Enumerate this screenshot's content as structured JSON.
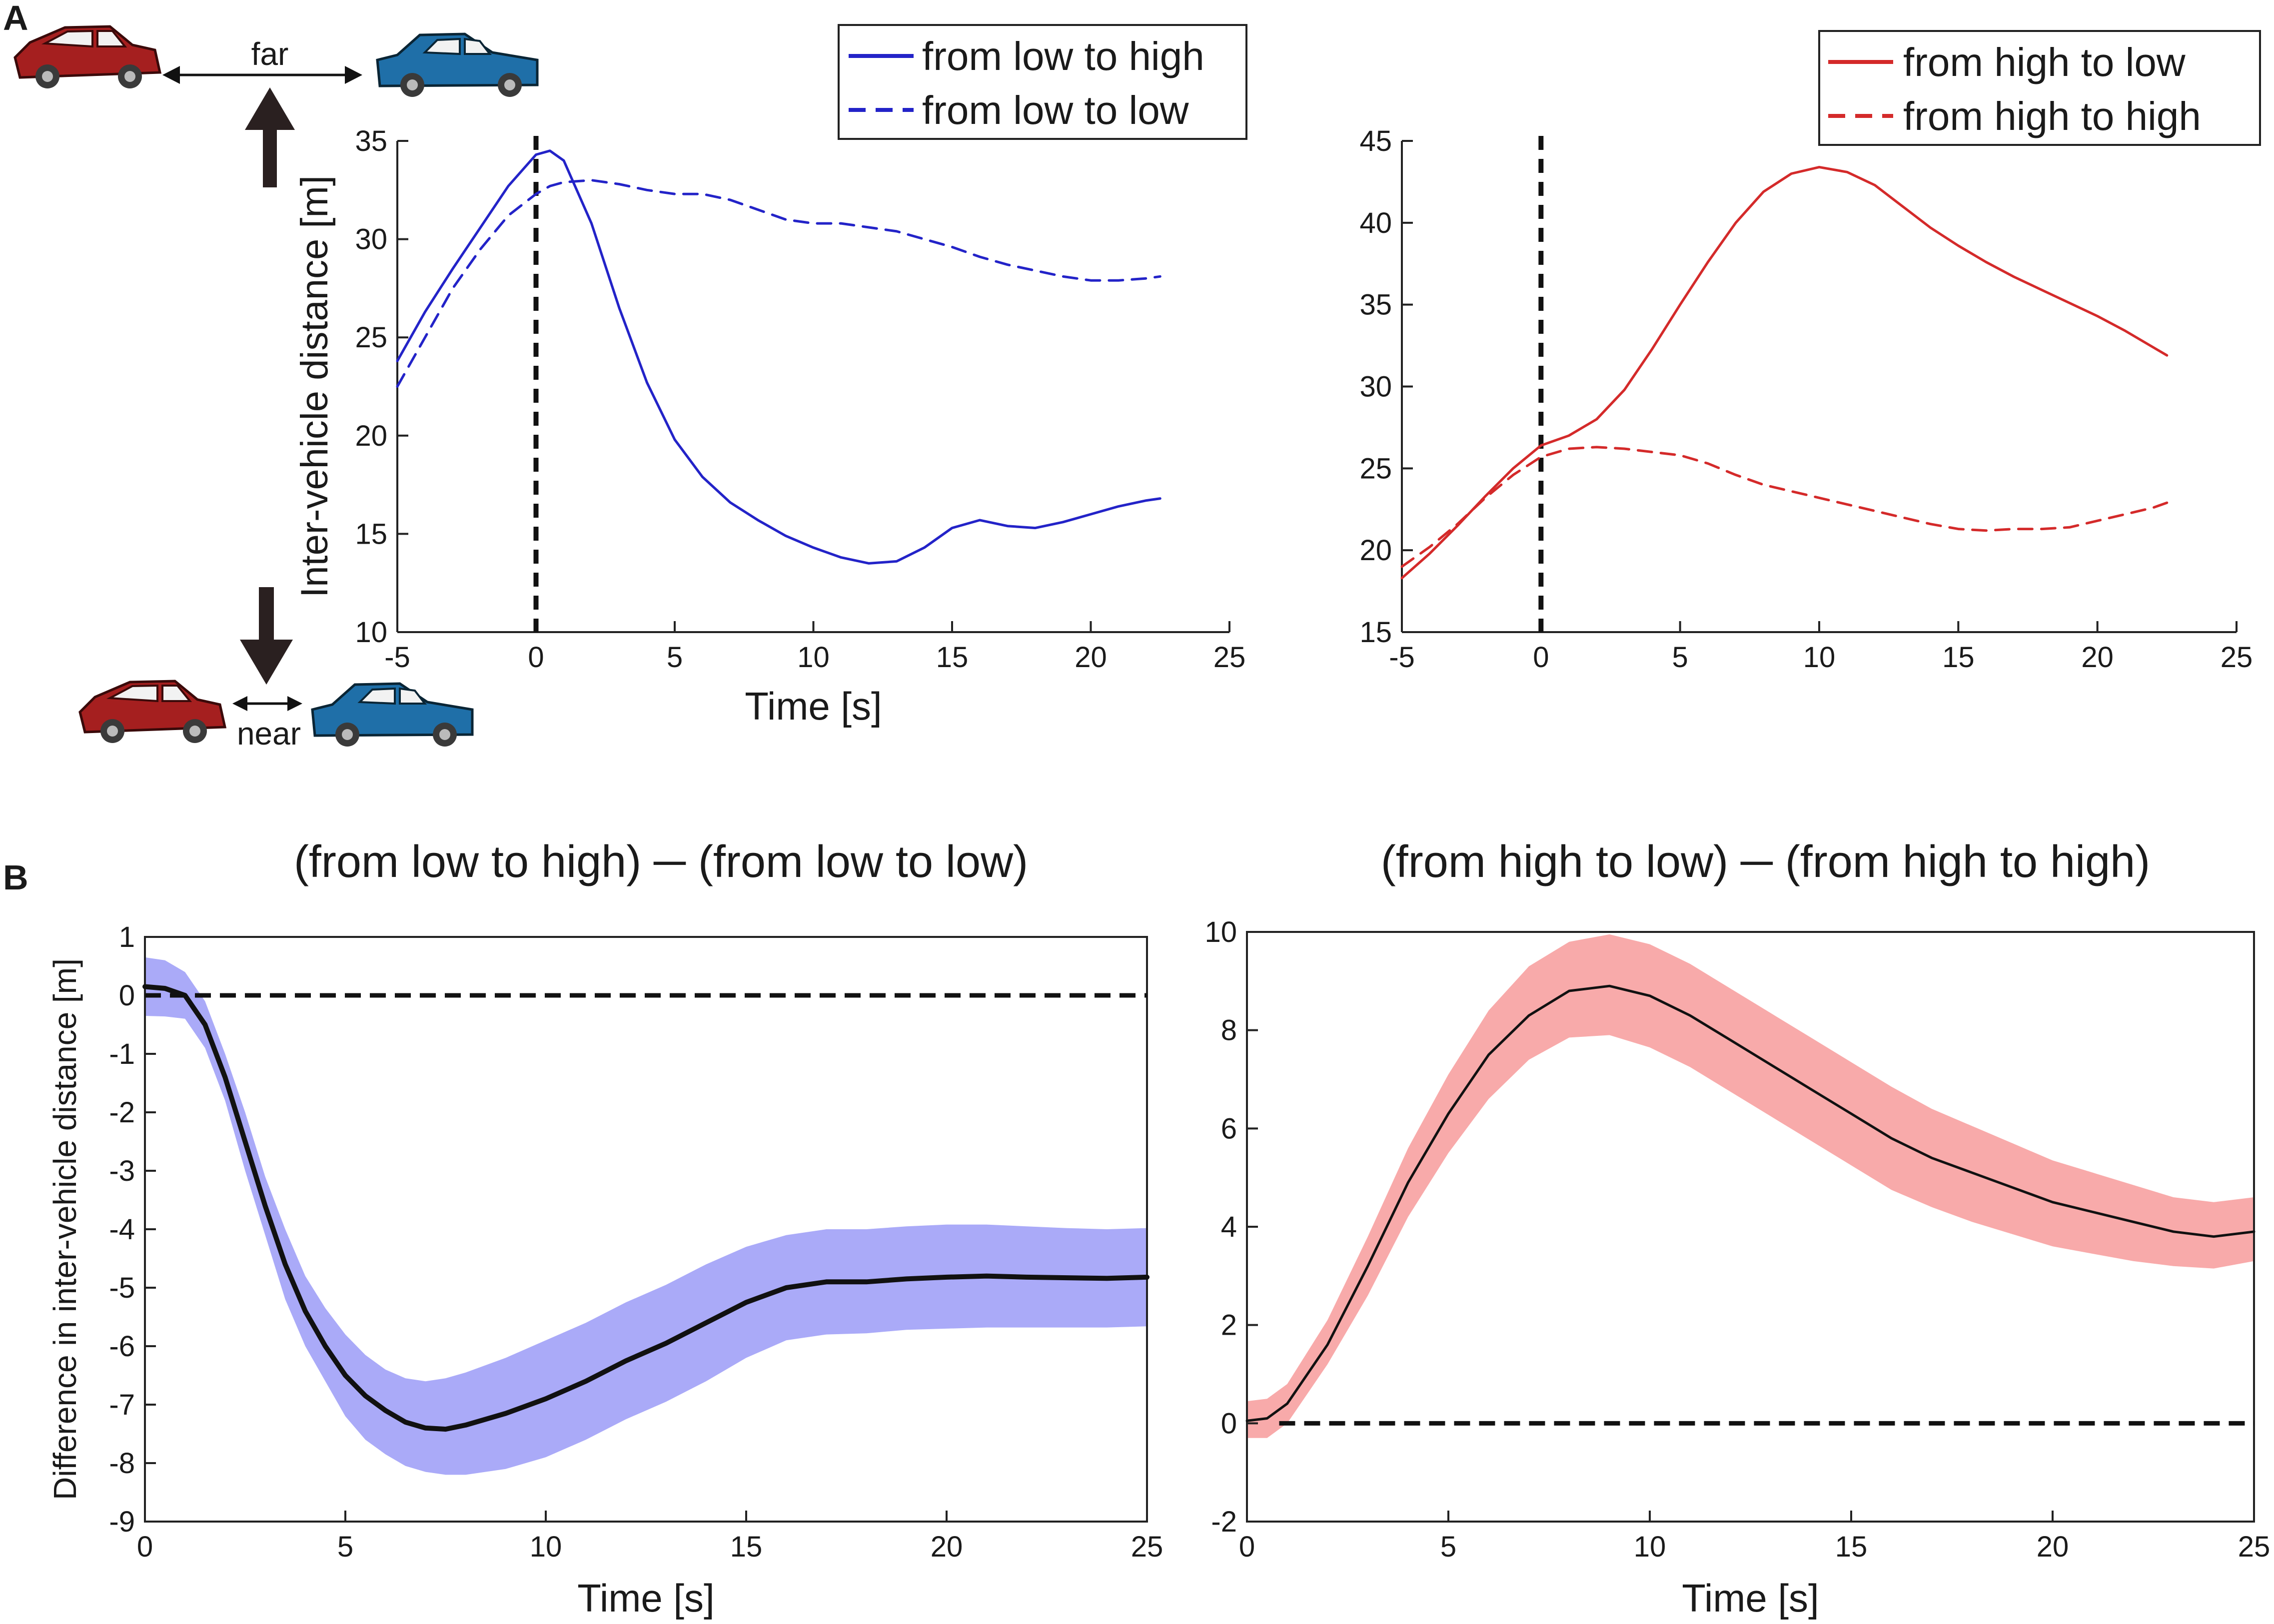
{
  "figure": {
    "panel_a_label": "A",
    "panel_b_label": "B",
    "car_labels": {
      "far": "far",
      "near": "near"
    },
    "colors": {
      "blue": "#2323c8",
      "red": "#d42a2a",
      "blue_band": "#aaaaf8",
      "red_band": "#f8aaaa",
      "black": "#111111"
    }
  },
  "chart_data": [
    {
      "id": "a_left",
      "type": "line",
      "title": "",
      "xlabel": "Time [s]",
      "ylabel": "Inter-vehicle distance [m]",
      "xlim": [
        -5,
        25
      ],
      "ylim": [
        10,
        35
      ],
      "xticks": [
        -5,
        0,
        5,
        10,
        15,
        20,
        25
      ],
      "yticks": [
        10,
        15,
        20,
        25,
        30,
        35
      ],
      "x": [
        -5,
        -4,
        -3,
        -2,
        -1,
        0,
        0.5,
        1,
        2,
        3,
        4,
        5,
        6,
        7,
        8,
        9,
        10,
        11,
        12,
        13,
        14,
        15,
        16,
        17,
        18,
        19,
        20,
        21,
        22,
        22.5
      ],
      "series": [
        {
          "name": "from low to high",
          "style": "solid",
          "color": "#2323c8",
          "values": [
            23.8,
            26.3,
            28.5,
            30.6,
            32.7,
            34.3,
            34.5,
            34.0,
            30.8,
            26.5,
            22.7,
            19.8,
            17.9,
            16.6,
            15.7,
            14.9,
            14.3,
            13.8,
            13.5,
            13.6,
            14.3,
            15.3,
            15.7,
            15.4,
            15.3,
            15.6,
            16.0,
            16.4,
            16.7,
            16.8
          ]
        },
        {
          "name": "from low to low",
          "style": "dashed",
          "color": "#2323c8",
          "values": [
            22.5,
            25.0,
            27.5,
            29.5,
            31.2,
            32.3,
            32.7,
            32.9,
            33.0,
            32.8,
            32.5,
            32.3,
            32.3,
            32.0,
            31.5,
            31.0,
            30.8,
            30.8,
            30.6,
            30.4,
            30.0,
            29.6,
            29.1,
            28.7,
            28.4,
            28.1,
            27.9,
            27.9,
            28.0,
            28.1
          ]
        }
      ],
      "vline_x": 0,
      "legend": "top-right"
    },
    {
      "id": "a_right",
      "type": "line",
      "title": "",
      "xlabel": "",
      "ylabel": "",
      "xlim": [
        -5,
        25
      ],
      "ylim": [
        15,
        45
      ],
      "xticks": [
        -5,
        0,
        5,
        10,
        15,
        20,
        25
      ],
      "yticks": [
        15,
        20,
        25,
        30,
        35,
        40,
        45
      ],
      "x": [
        -5,
        -4,
        -3,
        -2,
        -1,
        0,
        1,
        2,
        3,
        4,
        5,
        6,
        7,
        8,
        9,
        10,
        11,
        12,
        13,
        14,
        15,
        16,
        17,
        18,
        19,
        20,
        21,
        22,
        22.5
      ],
      "series": [
        {
          "name": "from high to low",
          "style": "solid",
          "color": "#d42a2a",
          "values": [
            18.3,
            19.8,
            21.5,
            23.3,
            25.0,
            26.4,
            27.0,
            28.0,
            29.8,
            32.3,
            35.0,
            37.6,
            40.0,
            41.9,
            43.0,
            43.4,
            43.1,
            42.3,
            41.0,
            39.7,
            38.6,
            37.6,
            36.7,
            35.9,
            35.1,
            34.3,
            33.4,
            32.4,
            31.9
          ]
        },
        {
          "name": "from high to high",
          "style": "dashed",
          "color": "#d42a2a",
          "values": [
            19.0,
            20.2,
            21.6,
            23.2,
            24.6,
            25.7,
            26.2,
            26.3,
            26.2,
            26.0,
            25.8,
            25.3,
            24.6,
            24.0,
            23.6,
            23.2,
            22.8,
            22.4,
            22.0,
            21.6,
            21.3,
            21.2,
            21.3,
            21.3,
            21.4,
            21.8,
            22.2,
            22.6,
            22.9
          ]
        }
      ],
      "vline_x": 0,
      "legend": "top-right"
    },
    {
      "id": "b_left",
      "type": "area",
      "title": "(from low to high) ─ (from low to low)",
      "xlabel": "Time [s]",
      "ylabel": "Difference in inter-vehicle distance [m]",
      "xlim": [
        0,
        25
      ],
      "ylim": [
        -9,
        1
      ],
      "xticks": [
        0,
        5,
        10,
        15,
        20,
        25
      ],
      "yticks": [
        -9,
        -8,
        -7,
        -6,
        -5,
        -4,
        -3,
        -2,
        -1,
        0,
        1
      ],
      "x": [
        0,
        0.5,
        1,
        1.5,
        2,
        2.5,
        3,
        3.5,
        4,
        4.5,
        5,
        5.5,
        6,
        6.5,
        7,
        7.5,
        8,
        9,
        10,
        11,
        12,
        13,
        14,
        15,
        16,
        17,
        18,
        19,
        20,
        21,
        22,
        23,
        24,
        25
      ],
      "series": [
        {
          "name": "mean",
          "color": "#111111",
          "values": [
            0.15,
            0.12,
            0.0,
            -0.5,
            -1.4,
            -2.5,
            -3.6,
            -4.6,
            -5.4,
            -6.0,
            -6.5,
            -6.85,
            -7.1,
            -7.3,
            -7.4,
            -7.42,
            -7.35,
            -7.15,
            -6.9,
            -6.6,
            -6.25,
            -5.95,
            -5.6,
            -5.25,
            -5.0,
            -4.9,
            -4.9,
            -4.85,
            -4.82,
            -4.8,
            -4.82,
            -4.83,
            -4.84,
            -4.82
          ]
        },
        {
          "name": "upper",
          "color": "#aaaaf8",
          "values": [
            0.65,
            0.6,
            0.4,
            -0.1,
            -1.0,
            -2.0,
            -3.1,
            -4.0,
            -4.8,
            -5.35,
            -5.8,
            -6.15,
            -6.4,
            -6.55,
            -6.6,
            -6.55,
            -6.45,
            -6.2,
            -5.9,
            -5.6,
            -5.25,
            -4.95,
            -4.6,
            -4.3,
            -4.1,
            -4.0,
            -4.0,
            -3.95,
            -3.92,
            -3.92,
            -3.95,
            -3.98,
            -4.0,
            -3.98
          ]
        },
        {
          "name": "lower",
          "color": "#aaaaf8",
          "values": [
            -0.35,
            -0.36,
            -0.4,
            -0.9,
            -1.8,
            -3.0,
            -4.1,
            -5.2,
            -6.0,
            -6.6,
            -7.2,
            -7.6,
            -7.85,
            -8.05,
            -8.15,
            -8.2,
            -8.2,
            -8.1,
            -7.9,
            -7.6,
            -7.25,
            -6.95,
            -6.6,
            -6.2,
            -5.9,
            -5.8,
            -5.78,
            -5.72,
            -5.7,
            -5.68,
            -5.68,
            -5.68,
            -5.68,
            -5.66
          ]
        }
      ],
      "hline_y": 0,
      "hline_x_range": [
        0,
        25
      ]
    },
    {
      "id": "b_right",
      "type": "area",
      "title": "(from high to low) ─ (from high to high)",
      "xlabel": "Time [s]",
      "ylabel": "",
      "xlim": [
        0,
        25
      ],
      "ylim": [
        -2,
        10
      ],
      "xticks": [
        0,
        5,
        10,
        15,
        20,
        25
      ],
      "yticks": [
        -2,
        0,
        2,
        4,
        6,
        8,
        10
      ],
      "x": [
        0,
        0.5,
        1,
        2,
        3,
        4,
        5,
        6,
        7,
        8,
        9,
        10,
        11,
        12,
        13,
        14,
        15,
        16,
        17,
        18,
        19,
        20,
        21,
        22,
        23,
        24,
        25
      ],
      "series": [
        {
          "name": "mean",
          "color": "#111111",
          "values": [
            0.05,
            0.1,
            0.4,
            1.6,
            3.2,
            4.9,
            6.3,
            7.5,
            8.3,
            8.8,
            8.9,
            8.7,
            8.3,
            7.8,
            7.3,
            6.8,
            6.3,
            5.8,
            5.4,
            5.1,
            4.8,
            4.5,
            4.3,
            4.1,
            3.9,
            3.8,
            3.9
          ]
        },
        {
          "name": "upper",
          "color": "#f8aaaa",
          "values": [
            0.45,
            0.5,
            0.8,
            2.1,
            3.8,
            5.6,
            7.1,
            8.4,
            9.3,
            9.8,
            9.95,
            9.75,
            9.35,
            8.85,
            8.35,
            7.85,
            7.35,
            6.85,
            6.4,
            6.05,
            5.7,
            5.35,
            5.1,
            4.85,
            4.6,
            4.5,
            4.6
          ]
        },
        {
          "name": "lower",
          "color": "#f8aaaa",
          "values": [
            -0.3,
            -0.3,
            0.0,
            1.2,
            2.6,
            4.2,
            5.5,
            6.6,
            7.4,
            7.85,
            7.9,
            7.65,
            7.25,
            6.75,
            6.25,
            5.75,
            5.25,
            4.75,
            4.4,
            4.1,
            3.85,
            3.6,
            3.45,
            3.3,
            3.2,
            3.15,
            3.3
          ]
        }
      ],
      "hline_y": 0,
      "hline_x_range": [
        0.8,
        25
      ]
    }
  ]
}
